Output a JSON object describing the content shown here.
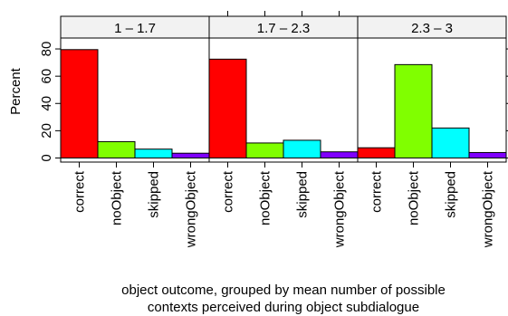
{
  "chart_data": {
    "type": "bar",
    "layout": "trellis-3-panels",
    "ylabel": "Percent",
    "xlabel_lines": [
      "object outcome, grouped by mean number of possible",
      "contexts perceived during object subdialogue"
    ],
    "categories": [
      "correct",
      "noObject",
      "skipped",
      "wrongObject"
    ],
    "bar_colors": [
      "#FF0000",
      "#80FF00",
      "#00FFFF",
      "#8000FF"
    ],
    "strip_color": "#F2F2F2",
    "ylim": [
      -3,
      88
    ],
    "yticks": [
      "0",
      "20",
      "40",
      "60",
      "80"
    ],
    "panels": [
      {
        "label": "1 – 1.7",
        "values": [
          79.5,
          12,
          6.5,
          3.5
        ]
      },
      {
        "label": "1.7 – 2.3",
        "values": [
          72.5,
          11,
          13,
          4.5
        ]
      },
      {
        "label": "2.3 – 3",
        "values": [
          7.5,
          68.5,
          22,
          4
        ]
      }
    ]
  }
}
